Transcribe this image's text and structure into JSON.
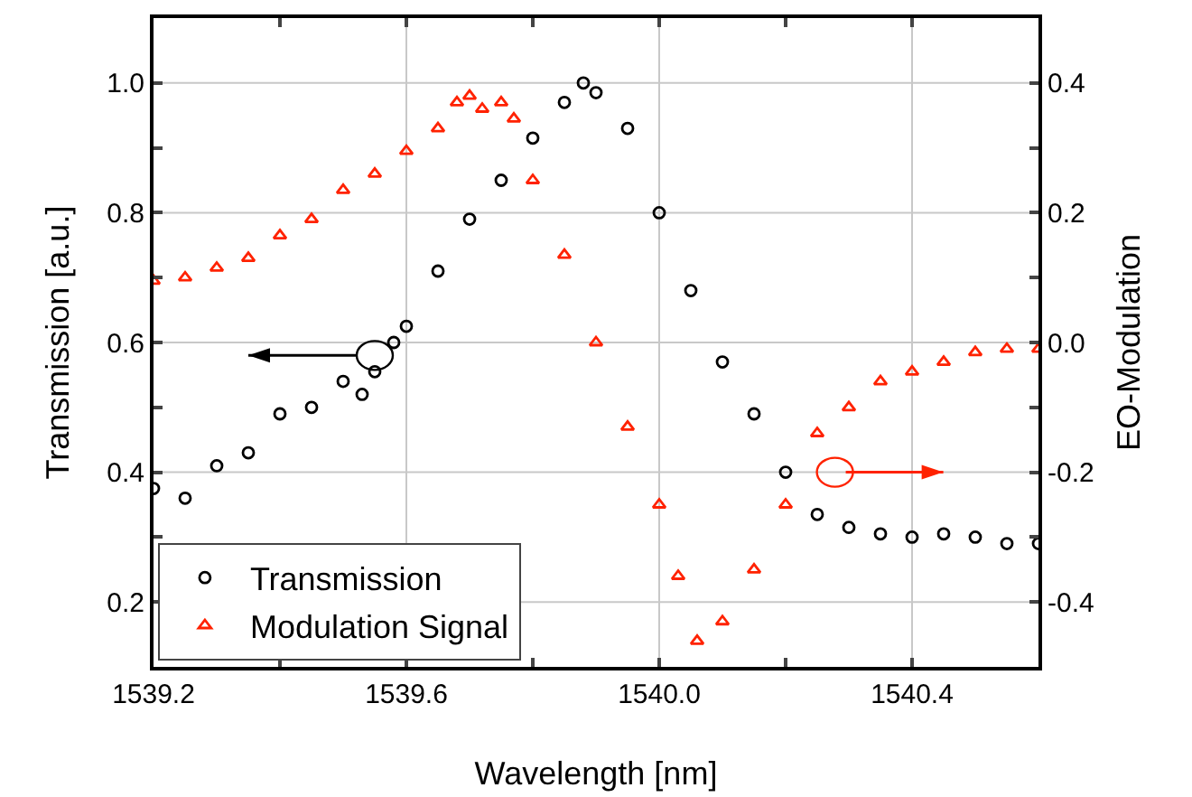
{
  "chart_data": {
    "type": "scatter",
    "xlabel": "Wavelength [nm]",
    "ylabel": "Transmission [a.u.]",
    "y2label": "EO-Modulation",
    "xlim": [
      1539.2,
      1540.6
    ],
    "xticks": [
      1539.2,
      {
        "value": 1539.4,
        "label": null
      },
      1539.6,
      {
        "value": 1539.8,
        "label": null
      },
      "1540.0",
      {
        "value": 1540.2,
        "label": null
      },
      1540.4
    ],
    "ylim": [
      0.1,
      1.1
    ],
    "yticks": [
      0.2,
      {
        "value": 0.3,
        "label": null
      },
      0.4,
      {
        "value": 0.5,
        "label": null
      },
      0.6,
      {
        "value": 0.7,
        "label": null
      },
      0.8,
      {
        "value": 0.9,
        "label": null
      },
      {
        "value": 1.0,
        "label": "1.0"
      }
    ],
    "y2lim": [
      -0.5,
      0.5
    ],
    "y2ticks": [
      {
        "value": -0.4,
        "label": "-0.4"
      },
      {
        "value": -0.3,
        "label": null
      },
      {
        "value": -0.2,
        "label": "-0.2"
      },
      {
        "value": -0.1,
        "label": null
      },
      {
        "value": 0,
        "label": "0.0"
      },
      {
        "value": 0.1,
        "label": null
      },
      0.2,
      {
        "value": 0.3,
        "label": null
      },
      0.4
    ],
    "grid": true,
    "legend": "bottom left",
    "series": [
      {
        "name": "Transmission",
        "color": "#000000",
        "marker": "circle",
        "x": [
          1539.2,
          1539.25,
          1539.3,
          1539.35,
          1539.4,
          1539.45,
          1539.5,
          1539.53,
          1539.55,
          1539.58,
          1539.6,
          1539.65,
          1539.7,
          1539.75,
          1539.8,
          1539.85,
          1539.88,
          1539.9,
          1539.95,
          1540.0,
          1540.05,
          1540.1,
          1540.15,
          1540.2,
          1540.25,
          1540.3,
          1540.35,
          1540.4,
          1540.45,
          1540.5,
          1540.55,
          1540.6
        ],
        "values": [
          0.375,
          0.36,
          0.41,
          0.43,
          0.49,
          0.5,
          0.54,
          0.52,
          0.555,
          0.6,
          0.625,
          0.71,
          0.79,
          0.85,
          0.915,
          0.97,
          1.0,
          0.985,
          0.93,
          0.8,
          0.68,
          0.57,
          0.49,
          0.4,
          0.335,
          0.315,
          0.305,
          0.3,
          0.305,
          0.3,
          0.29,
          0.29
        ]
      },
      {
        "name": "Modulation Signal",
        "color": "#ff2200",
        "marker": "triangle",
        "axis": "y2",
        "x": [
          1539.2,
          1539.25,
          1539.3,
          1539.35,
          1539.4,
          1539.45,
          1539.5,
          1539.55,
          1539.6,
          1539.65,
          1539.68,
          1539.7,
          1539.72,
          1539.75,
          1539.77,
          1539.8,
          1539.85,
          1539.9,
          1539.95,
          1540.0,
          1540.03,
          1540.06,
          1540.1,
          1540.15,
          1540.2,
          1540.25,
          1540.3,
          1540.35,
          1540.4,
          1540.45,
          1540.5,
          1540.55,
          1540.6
        ],
        "values": [
          0.095,
          0.1,
          0.115,
          0.13,
          0.165,
          0.19,
          0.235,
          0.26,
          0.295,
          0.33,
          0.37,
          0.38,
          0.36,
          0.37,
          0.345,
          0.25,
          0.135,
          0.0,
          -0.13,
          -0.25,
          -0.36,
          -0.46,
          -0.43,
          -0.35,
          -0.25,
          -0.14,
          -0.1,
          -0.06,
          -0.045,
          -0.03,
          -0.015,
          -0.01,
          -0.01
        ]
      }
    ]
  }
}
